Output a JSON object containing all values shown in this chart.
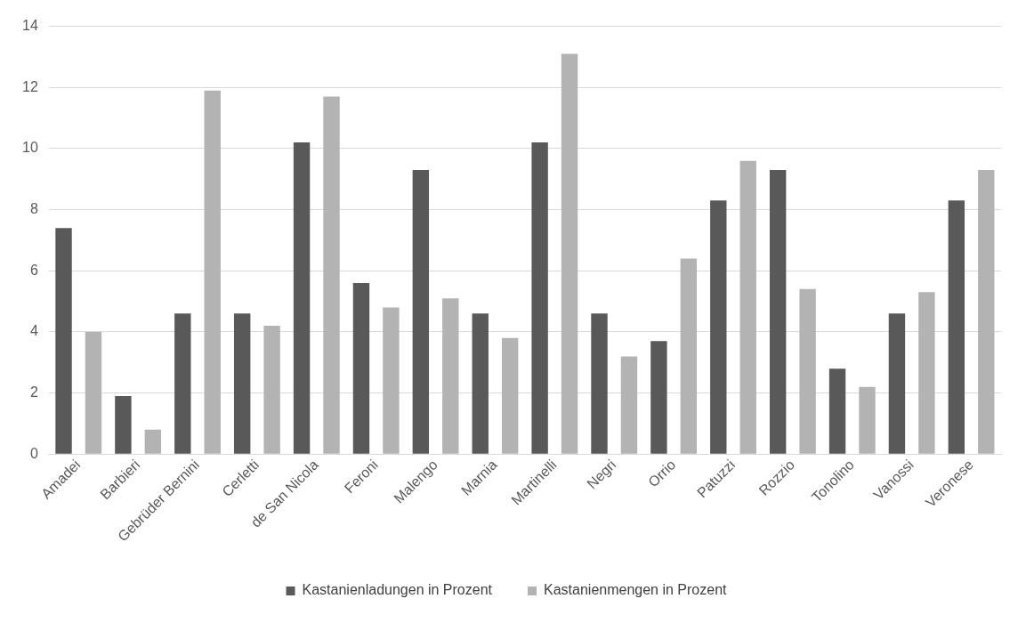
{
  "chart_data": {
    "type": "bar",
    "categories": [
      "Amadei",
      "Barbieri",
      "Gebrüder Bernini",
      "Cerletti",
      "de San Nicola",
      "Feroni",
      "Malengo",
      "Marnia",
      "Martinelli",
      "Negri",
      "Orrio",
      "Patuzzi",
      "Rozzio",
      "Tonolino",
      "Vanossi",
      "Veronese"
    ],
    "series": [
      {
        "name": "Kastanienladungen in Prozent",
        "color": "#595959",
        "values": [
          7.4,
          1.9,
          4.6,
          4.6,
          10.2,
          5.6,
          9.3,
          4.6,
          10.2,
          4.6,
          3.7,
          8.3,
          9.3,
          2.8,
          4.6,
          8.3
        ]
      },
      {
        "name": "Kastanienmengen in Prozent",
        "color": "#b3b3b3",
        "values": [
          4.0,
          0.8,
          11.9,
          4.2,
          11.7,
          4.8,
          5.1,
          3.8,
          13.1,
          3.2,
          6.4,
          9.6,
          5.4,
          2.2,
          5.3,
          9.3
        ]
      }
    ],
    "ylim": [
      0,
      14
    ],
    "yticks": [
      0,
      2,
      4,
      6,
      8,
      10,
      12,
      14
    ],
    "grid": "y",
    "legend": "bottom"
  }
}
